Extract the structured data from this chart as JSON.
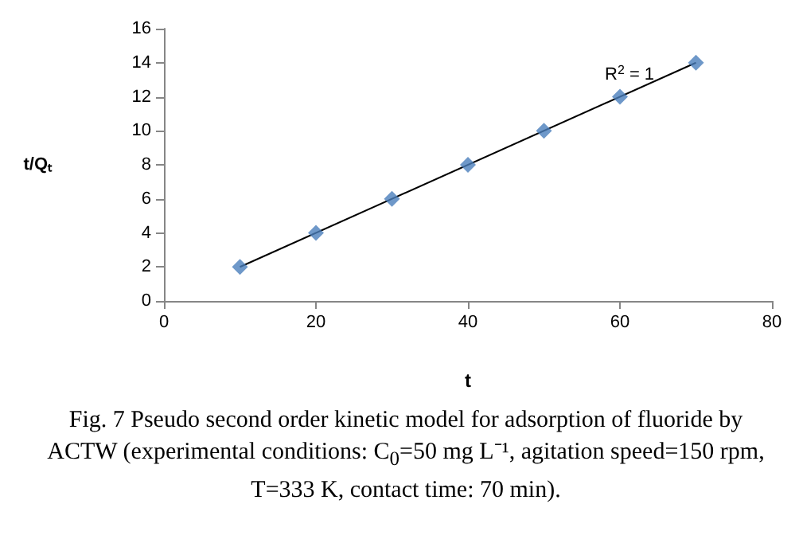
{
  "chart_data": {
    "type": "scatter",
    "xlabel": "t",
    "ylabel": "t/Qₜ",
    "xlim": [
      0,
      80
    ],
    "xticks": [
      0,
      20,
      40,
      60,
      80
    ],
    "ylim": [
      0,
      16
    ],
    "yticks": [
      0,
      2,
      4,
      6,
      8,
      10,
      12,
      14,
      16
    ],
    "grid": false,
    "marker": "diamond",
    "series": [
      {
        "color": "#4a7ebb",
        "x": [
          10,
          20,
          30,
          40,
          50,
          60,
          70
        ],
        "values": [
          2,
          4,
          6,
          8,
          10,
          12,
          14
        ]
      },
      {
        "type": "line",
        "color": "#000000",
        "marker": "none",
        "line_style": "solid",
        "x": [
          10,
          70
        ],
        "values": [
          2,
          14
        ]
      }
    ],
    "annotations": [
      "R$^{2}$ = 1",
      "Fig. 7 Pseudo second order kinetic model for adsorption of fluoride by ACTW (experimental conditions: C$_{0}$=50 mg L⁻¹, agitation speed=150 rpm, T=333 K, contact time: 70 min)."
    ]
  }
}
